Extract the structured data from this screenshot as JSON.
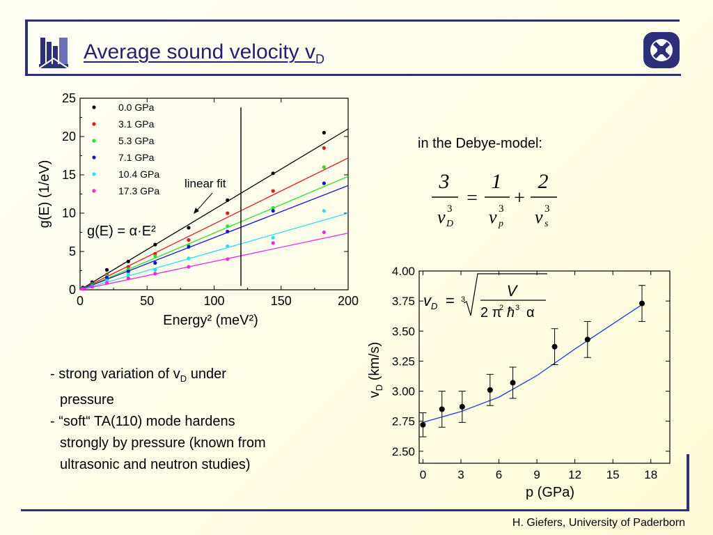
{
  "title": {
    "text": "Average sound velocity v",
    "subscript": "D"
  },
  "debye_label": "in the  Debye-model:",
  "bullets": {
    "b1_prefix": "- strong variation of v",
    "b1_sub": "D",
    "b1_suffix": " under",
    "b1_cont": "pressure",
    "b2_l1": "- “soft“ TA(110) mode hardens",
    "b2_l2": "strongly by pressure (known from",
    "b2_l3": "ultrasonic and neutron studies)"
  },
  "footer": "H. Giefers, University of Paderborn",
  "chart_data": [
    {
      "type": "scatter",
      "xlabel": "Energy² (meV²)",
      "ylabel": "g(E) (1/eV)",
      "xlim": [
        0,
        200
      ],
      "ylim": [
        0,
        25
      ],
      "xticks": [
        0,
        50,
        100,
        150,
        200
      ],
      "yticks": [
        0,
        5,
        10,
        15,
        20,
        25
      ],
      "legend_position": "top-left",
      "annotations": {
        "fit_label": "linear fit",
        "formula": "g(E) = α·E²"
      },
      "series": [
        {
          "name": "0.0 GPa",
          "color": "#000000",
          "slope": 0.105,
          "x": [
            2,
            9,
            20,
            36,
            56,
            81,
            110,
            144,
            182
          ],
          "y": [
            0.3,
            1.0,
            2.6,
            3.7,
            5.9,
            8.1,
            11.7,
            15.2,
            20.5
          ]
        },
        {
          "name": "3.1 GPa",
          "color": "#e8141c",
          "slope": 0.086,
          "x": [
            2,
            9,
            20,
            36,
            56,
            81,
            110,
            144,
            182
          ],
          "y": [
            0.2,
            0.8,
            2.0,
            3.0,
            4.7,
            6.5,
            10.0,
            12.9,
            18.5
          ]
        },
        {
          "name": "5.3 GPa",
          "color": "#28e028",
          "slope": 0.074,
          "x": [
            2,
            9,
            20,
            36,
            56,
            81,
            110,
            144,
            182
          ],
          "y": [
            0.2,
            0.7,
            1.8,
            2.7,
            4.4,
            5.8,
            8.3,
            10.7,
            16.0
          ]
        },
        {
          "name": "7.1 GPa",
          "color": "#1414d8",
          "slope": 0.068,
          "x": [
            2,
            9,
            20,
            36,
            56,
            81,
            110,
            144,
            182
          ],
          "y": [
            0.2,
            0.6,
            1.6,
            2.4,
            3.5,
            5.6,
            7.6,
            10.3,
            13.9
          ]
        },
        {
          "name": "10.4 GPa",
          "color": "#28e0f0",
          "slope": 0.05,
          "x": [
            2,
            9,
            20,
            36,
            56,
            81,
            110,
            144,
            182
          ],
          "y": [
            0.1,
            0.5,
            1.2,
            2.0,
            2.6,
            4.1,
            5.7,
            6.8,
            10.3
          ]
        },
        {
          "name": "17.3 GPa",
          "color": "#f028e0",
          "slope": 0.037,
          "x": [
            2,
            9,
            20,
            36,
            56,
            81,
            110,
            144,
            182
          ],
          "y": [
            0.1,
            0.4,
            0.9,
            1.5,
            2.1,
            3.0,
            4.0,
            6.1,
            7.5
          ]
        }
      ]
    },
    {
      "type": "scatter",
      "xlabel": "p (GPa)",
      "ylabel": "v_D (km/s)",
      "xlim": [
        -0.3,
        19.5
      ],
      "ylim": [
        2.4,
        4.0
      ],
      "xticks": [
        0,
        3,
        6,
        9,
        12,
        15,
        18
      ],
      "yticks": [
        "2.50",
        "2.75",
        "3.00",
        "3.25",
        "3.50",
        "3.75",
        "4.00"
      ],
      "fit_color": "#1a3fd8",
      "fit_curve": {
        "x": [
          0,
          3,
          6,
          9,
          12,
          15,
          17.3
        ],
        "y": [
          2.74,
          2.83,
          2.95,
          3.13,
          3.35,
          3.56,
          3.72
        ]
      },
      "points": [
        {
          "x": 0.0,
          "y": 2.72,
          "err": 0.1
        },
        {
          "x": 1.5,
          "y": 2.85,
          "err": 0.15
        },
        {
          "x": 3.1,
          "y": 2.87,
          "err": 0.13
        },
        {
          "x": 5.3,
          "y": 3.01,
          "err": 0.13
        },
        {
          "x": 7.1,
          "y": 3.07,
          "err": 0.13
        },
        {
          "x": 10.4,
          "y": 3.37,
          "err": 0.15
        },
        {
          "x": 13.0,
          "y": 3.43,
          "err": 0.15
        },
        {
          "x": 17.3,
          "y": 3.73,
          "err": 0.15
        }
      ]
    }
  ]
}
